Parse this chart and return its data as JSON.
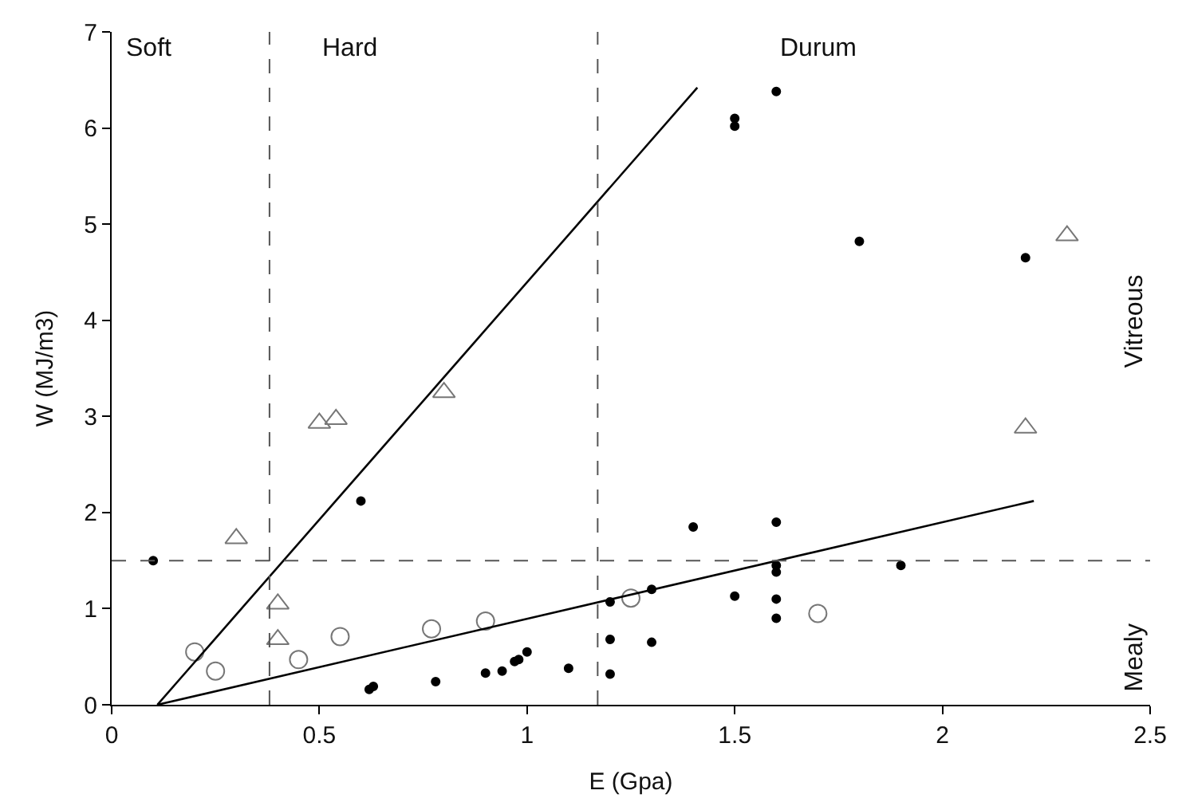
{
  "chart_data": {
    "type": "scatter",
    "xlabel": "E (Gpa)",
    "ylabel": "W (MJ/m3)",
    "xlim": [
      0,
      2.5
    ],
    "xticks": [
      0,
      0.5,
      1,
      1.5,
      2,
      2.5
    ],
    "ylim": [
      0,
      7
    ],
    "yticks": [
      0,
      1,
      2,
      3,
      4,
      5,
      6,
      7
    ],
    "legend": false,
    "series": [
      {
        "color": "#000000",
        "marker": "circle",
        "x": [
          0.1,
          0.6,
          0.62,
          0.63,
          0.78,
          0.9,
          0.94,
          0.97,
          0.98,
          1.0,
          1.1,
          1.2,
          1.2,
          1.2,
          1.3,
          1.3,
          1.4,
          1.5,
          1.5,
          1.5,
          1.6,
          1.6,
          1.6,
          1.6,
          1.6,
          1.6,
          1.8,
          1.9,
          2.2
        ],
        "values": [
          1.5,
          2.12,
          0.16,
          0.19,
          0.24,
          0.33,
          0.35,
          0.45,
          0.47,
          0.55,
          0.38,
          1.07,
          0.68,
          0.32,
          1.2,
          0.65,
          1.85,
          6.1,
          6.02,
          1.13,
          6.38,
          1.9,
          1.45,
          1.38,
          1.1,
          0.9,
          4.82,
          1.45,
          4.65
        ]
      },
      {
        "color": "#777777",
        "marker": "triangle",
        "x": [
          0.3,
          0.4,
          0.4,
          0.5,
          0.54,
          0.8,
          2.2,
          2.3
        ],
        "values": [
          1.73,
          1.05,
          0.68,
          2.93,
          2.97,
          3.25,
          2.88,
          4.88
        ]
      },
      {
        "color": "#777777",
        "marker": "circle-open",
        "x": [
          0.2,
          0.25,
          0.45,
          0.55,
          0.77,
          0.9,
          1.25,
          1.7
        ],
        "values": [
          0.55,
          0.35,
          0.47,
          0.71,
          0.79,
          0.87,
          1.11,
          0.95
        ]
      },
      {
        "type": "line",
        "color": "#000000",
        "marker": "none",
        "x": [
          0.11,
          1.41
        ],
        "values": [
          0,
          6.42
        ]
      },
      {
        "type": "line",
        "color": "#000000",
        "marker": "none",
        "x": [
          0.11,
          2.22
        ],
        "values": [
          0,
          2.12
        ]
      }
    ],
    "ref_lines": [
      {
        "axis": "x",
        "value": 0.38,
        "line_style": "dashed"
      },
      {
        "axis": "x",
        "value": 1.17,
        "line_style": "dashed"
      },
      {
        "axis": "y",
        "value": 1.5,
        "line_style": "dashed"
      }
    ],
    "annotations": [
      "Soft",
      "Hard",
      "Durum",
      "Vitreous",
      "Mealy"
    ]
  }
}
